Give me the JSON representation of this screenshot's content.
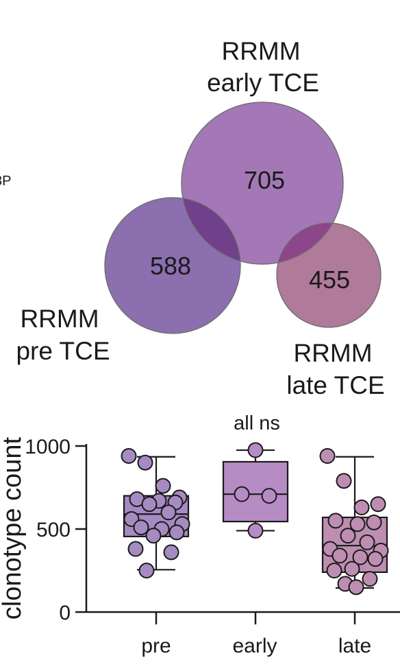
{
  "chart_data": [
    {
      "type": "venn",
      "sets": [
        {
          "label_lines": [
            "RRMM",
            "early TCE"
          ],
          "count": "705",
          "color": "#a478b7"
        },
        {
          "label_lines": [
            "RRMM",
            "pre TCE"
          ],
          "count": "588",
          "color": "#8b6fae"
        },
        {
          "label_lines": [
            "RRMM",
            "late TCE"
          ],
          "count": "455",
          "color": "#b07a9a"
        }
      ],
      "overlap_colors": {
        "early_pre": "#71408a",
        "early_late": "#8d4689"
      },
      "left_edge_text": "3P"
    },
    {
      "type": "boxplot",
      "ylabel": "clonotype count",
      "annotation": "all ns",
      "ylim": [
        0,
        1000
      ],
      "yticks": [
        "0",
        "500",
        "1000"
      ],
      "categories": [
        "pre",
        "early",
        "late"
      ],
      "groups": [
        {
          "name": "pre",
          "color": "#a58bc2",
          "box": {
            "min": 255,
            "q1": 455,
            "median": 590,
            "q3": 700,
            "max": 935
          },
          "points": [
            940,
            900,
            760,
            690,
            680,
            670,
            660,
            650,
            600,
            560,
            530,
            510,
            500,
            480,
            460,
            380,
            360,
            250
          ]
        },
        {
          "name": "early",
          "color": "#b68cc4",
          "box": {
            "min": 490,
            "q1": 545,
            "median": 710,
            "q3": 905,
            "max": 975
          },
          "points": [
            975,
            710,
            700,
            490
          ]
        },
        {
          "name": "late",
          "color": "#be8eb2",
          "box": {
            "min": 145,
            "q1": 240,
            "median": 400,
            "q3": 570,
            "max": 935
          },
          "points": [
            940,
            790,
            630,
            650,
            550,
            530,
            540,
            460,
            420,
            380,
            370,
            340,
            330,
            320,
            260,
            250,
            200,
            170,
            150
          ]
        }
      ]
    }
  ]
}
